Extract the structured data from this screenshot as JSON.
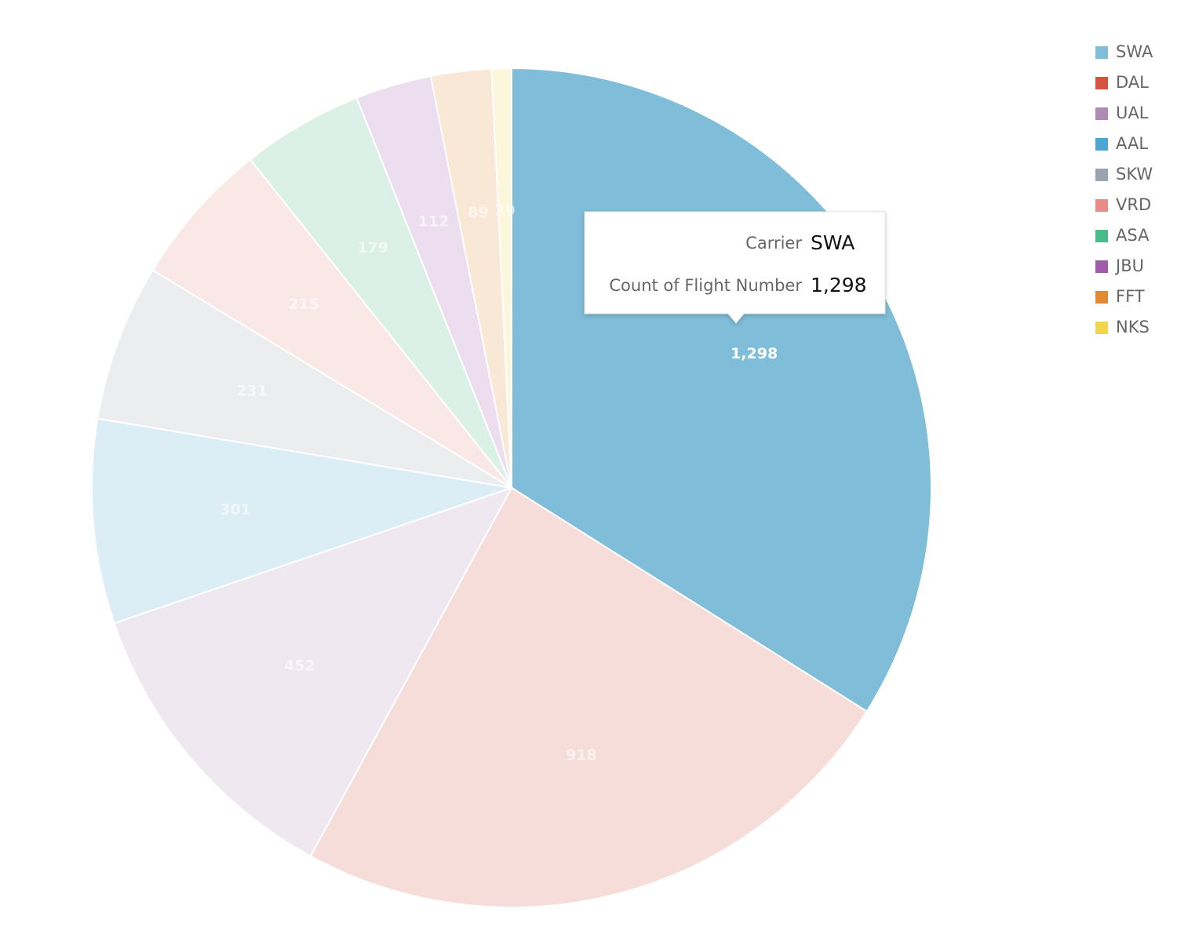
{
  "chart_data": {
    "type": "pie",
    "categories": [
      "SWA",
      "DAL",
      "UAL",
      "AAL",
      "SKW",
      "VRD",
      "ASA",
      "JBU",
      "FFT",
      "NKS"
    ],
    "values": [
      1298,
      918,
      452,
      301,
      231,
      215,
      179,
      112,
      89,
      29
    ],
    "value_labels": [
      "1,298",
      "918",
      "452",
      "301",
      "231",
      "215",
      "179",
      "112",
      "89",
      "29"
    ],
    "colors": [
      "#80bdd8",
      "#d4553f",
      "#b08ab5",
      "#4da6cf",
      "#9aa3b0",
      "#e78c87",
      "#4cb98a",
      "#a15aa9",
      "#e28a2f",
      "#f0d64a"
    ],
    "highlighted": 0,
    "legend": "top-right",
    "tooltip": {
      "category_title": "Carrier",
      "value_title": "Count of Flight Number"
    }
  }
}
